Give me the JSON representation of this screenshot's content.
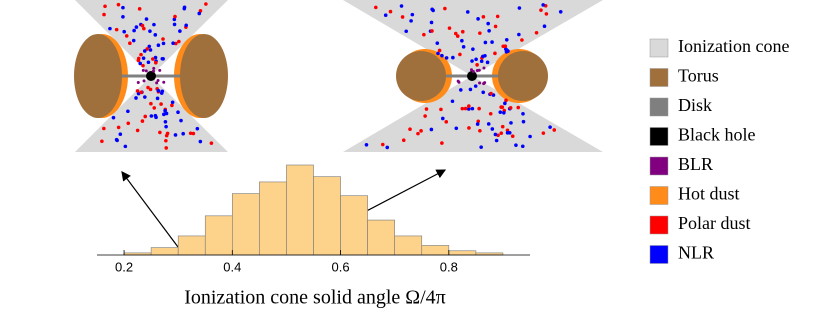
{
  "chart_data": {
    "type": "histogram",
    "xlabel": "Ionization cone solid angle Ω/4π",
    "bins": [
      0.2,
      0.25,
      0.3,
      0.35,
      0.4,
      0.45,
      0.5,
      0.55,
      0.6,
      0.65,
      0.7,
      0.75,
      0.8,
      0.85,
      0.9
    ],
    "counts": [
      2,
      7,
      18,
      37,
      58,
      69,
      85,
      74,
      56,
      33,
      18,
      9,
      4,
      2
    ],
    "color": "#fdd28a",
    "xlim": [
      0.15,
      0.95
    ],
    "xticks": [
      0.2,
      0.4,
      0.6,
      0.8
    ],
    "legend": [
      {
        "name": "Ionization cone",
        "color": "#d9d9d9"
      },
      {
        "name": "Torus",
        "color": "#a0703c"
      },
      {
        "name": "Disk",
        "color": "#7f7f7f"
      },
      {
        "name": "Black hole",
        "color": "#000000"
      },
      {
        "name": "BLR",
        "color": "#800080"
      },
      {
        "name": "Hot dust",
        "color": "#ff8c1a"
      },
      {
        "name": "Polar dust",
        "color": "#ff0000"
      },
      {
        "name": "NLR",
        "color": "#0000ff"
      }
    ]
  }
}
